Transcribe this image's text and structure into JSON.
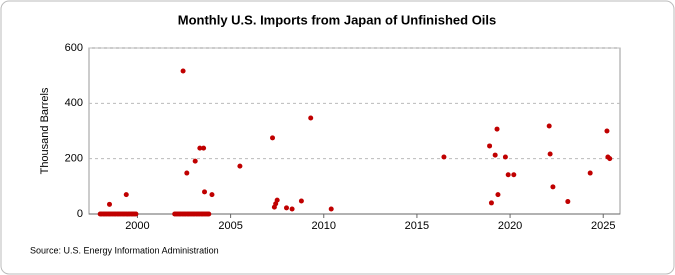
{
  "chart_data": {
    "type": "scatter",
    "title": "Monthly U.S. Imports from Japan of Unfinished Oils",
    "y_label": "Thousand Barrels",
    "source": "Source: U.S. Energy Information Administration",
    "color": "#c00000",
    "grid": true,
    "xlim": [
      1997.4,
      2025.9
    ],
    "xticks": [
      2000,
      2005,
      2010,
      2015,
      2020,
      2025
    ],
    "ylim": [
      0,
      600
    ],
    "yticks": [
      0,
      200,
      400,
      600
    ],
    "x": [
      1998.0,
      1998.08,
      1998.17,
      1998.25,
      1998.33,
      1998.42,
      1998.5,
      1998.58,
      1998.67,
      1998.75,
      1998.83,
      1998.92,
      1999.0,
      1999.08,
      1999.17,
      1999.25,
      1999.33,
      1999.42,
      1999.5,
      1999.58,
      1999.67,
      1999.75,
      1999.83,
      1999.92,
      1998.5,
      1999.4,
      2002.0,
      2002.08,
      2002.17,
      2002.25,
      2002.33,
      2002.42,
      2002.5,
      2002.58,
      2002.67,
      2002.75,
      2002.83,
      2002.92,
      2003.0,
      2003.08,
      2003.17,
      2003.25,
      2003.33,
      2003.42,
      2003.5,
      2003.58,
      2003.67,
      2003.75,
      2003.83,
      2002.45,
      2002.65,
      2003.1,
      2003.35,
      2003.55,
      2003.6,
      2004.0,
      2005.5,
      2007.25,
      2007.35,
      2007.42,
      2007.5,
      2008.0,
      2008.3,
      2008.8,
      2009.3,
      2010.4,
      2016.45,
      2018.9,
      2019.0,
      2019.2,
      2019.3,
      2019.35,
      2019.75,
      2019.9,
      2020.2,
      2022.1,
      2022.15,
      2022.3,
      2023.1,
      2024.3,
      2025.2,
      2025.25,
      2025.35
    ],
    "values": [
      0,
      0,
      0,
      0,
      0,
      0,
      0,
      0,
      0,
      0,
      0,
      0,
      0,
      0,
      0,
      0,
      0,
      0,
      0,
      0,
      0,
      0,
      0,
      0,
      35,
      70,
      0,
      0,
      0,
      0,
      0,
      0,
      0,
      0,
      0,
      0,
      0,
      0,
      0,
      0,
      0,
      0,
      0,
      0,
      0,
      0,
      0,
      0,
      0,
      517,
      148,
      191,
      238,
      238,
      80,
      70,
      173,
      275,
      25,
      37,
      50,
      22,
      18,
      47,
      347,
      18,
      206,
      246,
      40,
      213,
      307,
      70,
      206,
      142,
      142,
      318,
      217,
      98,
      45,
      148,
      300,
      206,
      200
    ]
  }
}
